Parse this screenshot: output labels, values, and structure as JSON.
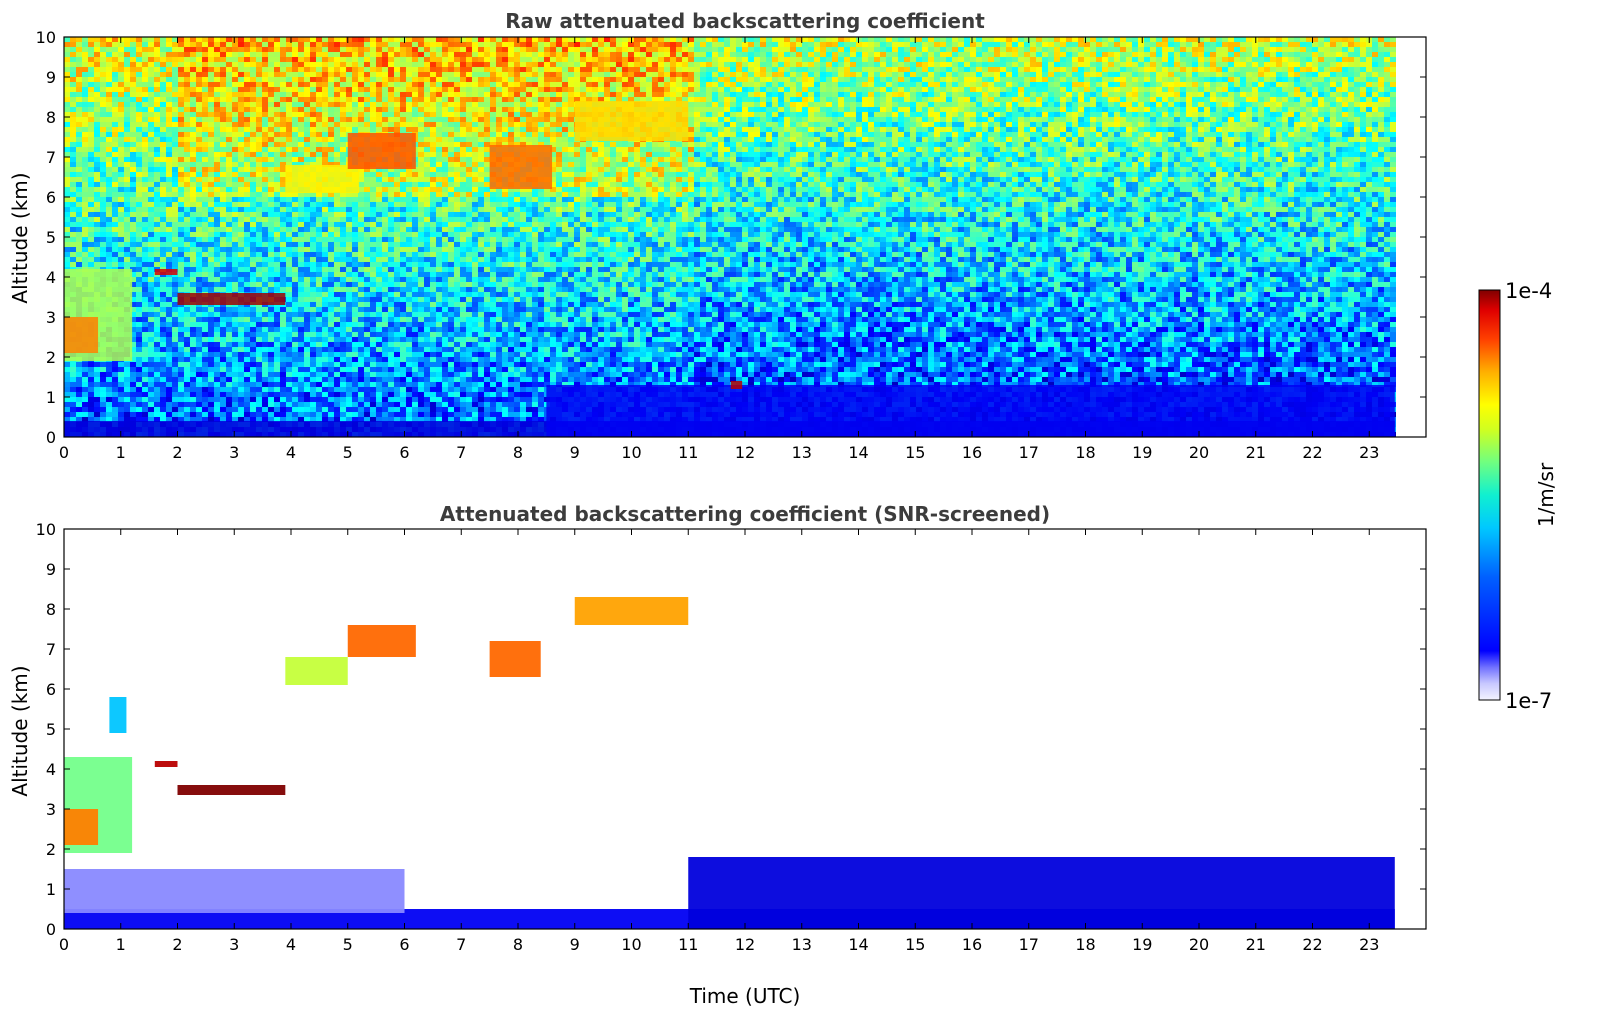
{
  "chart_data": [
    {
      "type": "heatmap",
      "title": "Raw attenuated backscattering coefficient",
      "xlabel": "",
      "ylabel": "Altitude (km)",
      "xlim": [
        0,
        24
      ],
      "ylim": [
        0,
        10
      ],
      "x_data_end": 23.45,
      "xticks": [
        "0",
        "1",
        "2",
        "3",
        "4",
        "5",
        "6",
        "7",
        "8",
        "9",
        "10",
        "11",
        "12",
        "13",
        "14",
        "15",
        "16",
        "17",
        "18",
        "19",
        "20",
        "21",
        "22",
        "23"
      ],
      "yticks": [
        "0",
        "1",
        "2",
        "3",
        "4",
        "5",
        "6",
        "7",
        "8",
        "9",
        "10"
      ],
      "noise": "dense",
      "features": [
        {
          "name": "low boundary layer",
          "x": [
            0,
            23.45
          ],
          "y": [
            0,
            0.4
          ],
          "level": 0.2
        },
        {
          "name": "afternoon aerosol layer",
          "x": [
            8.5,
            23.45
          ],
          "y": [
            0,
            1.3
          ],
          "level": 0.22
        },
        {
          "name": "low cloud 0-2 UTC",
          "x": [
            0,
            1.2
          ],
          "y": [
            1.9,
            4.2
          ],
          "level": 0.6
        },
        {
          "name": "peak low cloud",
          "x": [
            0,
            0.6
          ],
          "y": [
            2.1,
            3.0
          ],
          "level": 0.78
        },
        {
          "name": "thin layer 2-4 UTC",
          "x": [
            2.0,
            3.9
          ],
          "y": [
            3.3,
            3.6
          ],
          "level": 0.97
        },
        {
          "name": "patch 1.7-2 UTC",
          "x": [
            1.6,
            2.0
          ],
          "y": [
            4.05,
            4.2
          ],
          "level": 0.92
        },
        {
          "name": "cirrus 4-5",
          "x": [
            3.9,
            5.2
          ],
          "y": [
            6.1,
            6.8
          ],
          "level": 0.68
        },
        {
          "name": "cirrus 5-6.2",
          "x": [
            5.0,
            6.2
          ],
          "y": [
            6.7,
            7.6
          ],
          "level": 0.82
        },
        {
          "name": "cirrus 7.5-8.5",
          "x": [
            7.5,
            8.6
          ],
          "y": [
            6.2,
            7.3
          ],
          "level": 0.8
        },
        {
          "name": "high cirrus 9-11",
          "x": [
            9.0,
            11.0
          ],
          "y": [
            7.4,
            8.4
          ],
          "level": 0.7
        },
        {
          "name": "spike at 11.8 UTC",
          "x": [
            11.75,
            11.95
          ],
          "y": [
            1.2,
            1.4
          ],
          "level": 0.95
        }
      ]
    },
    {
      "type": "heatmap",
      "title": "Attenuated backscattering coefficient (SNR-screened)",
      "xlabel": "Time (UTC)",
      "ylabel": "Altitude (km)",
      "xlim": [
        0,
        24
      ],
      "ylim": [
        0,
        10
      ],
      "x_data_end": 23.45,
      "xticks": [
        "0",
        "1",
        "2",
        "3",
        "4",
        "5",
        "6",
        "7",
        "8",
        "9",
        "10",
        "11",
        "12",
        "13",
        "14",
        "15",
        "16",
        "17",
        "18",
        "19",
        "20",
        "21",
        "22",
        "23"
      ],
      "yticks": [
        "0",
        "1",
        "2",
        "3",
        "4",
        "5",
        "6",
        "7",
        "8",
        "9",
        "10"
      ],
      "noise": "screened",
      "features": [
        {
          "name": "boundary layer",
          "x": [
            0,
            23.45
          ],
          "y": [
            0,
            0.5
          ],
          "level": 0.22
        },
        {
          "name": "night residual layer",
          "x": [
            0,
            6.0
          ],
          "y": [
            0.4,
            1.5
          ],
          "level": 0.05
        },
        {
          "name": "afternoon mixed layer",
          "x": [
            11.0,
            23.45
          ],
          "y": [
            0,
            1.8
          ],
          "level": 0.2
        },
        {
          "name": "low cloud 0-2 UTC",
          "x": [
            0,
            1.2
          ],
          "y": [
            1.9,
            4.3
          ],
          "level": 0.55
        },
        {
          "name": "peak low cloud",
          "x": [
            0,
            0.6
          ],
          "y": [
            2.1,
            3.0
          ],
          "level": 0.78
        },
        {
          "name": "thin layer 2-4 UTC",
          "x": [
            2.0,
            3.9
          ],
          "y": [
            3.35,
            3.6
          ],
          "level": 1.0
        },
        {
          "name": "patch 1.7-2 UTC",
          "x": [
            1.6,
            2.0
          ],
          "y": [
            4.05,
            4.2
          ],
          "level": 0.95
        },
        {
          "name": "cirrus 4-5",
          "x": [
            3.9,
            5.0
          ],
          "y": [
            6.1,
            6.8
          ],
          "level": 0.62
        },
        {
          "name": "cirrus 5-6.2",
          "x": [
            5.0,
            6.2
          ],
          "y": [
            6.8,
            7.6
          ],
          "level": 0.8
        },
        {
          "name": "cirrus 7.5-8.5",
          "x": [
            7.5,
            8.4
          ],
          "y": [
            6.3,
            7.2
          ],
          "level": 0.8
        },
        {
          "name": "high cirrus 9-11",
          "x": [
            9.0,
            11.0
          ],
          "y": [
            7.6,
            8.3
          ],
          "level": 0.75
        },
        {
          "name": "patch 1 UTC",
          "x": [
            0.8,
            1.1
          ],
          "y": [
            4.9,
            5.8
          ],
          "level": 0.4
        }
      ]
    }
  ],
  "colorbar": {
    "label": "1/m/sr",
    "max_label": "1e-4",
    "min_label": "1e-7"
  },
  "colors": {
    "title_text": "#3c3c3c"
  }
}
